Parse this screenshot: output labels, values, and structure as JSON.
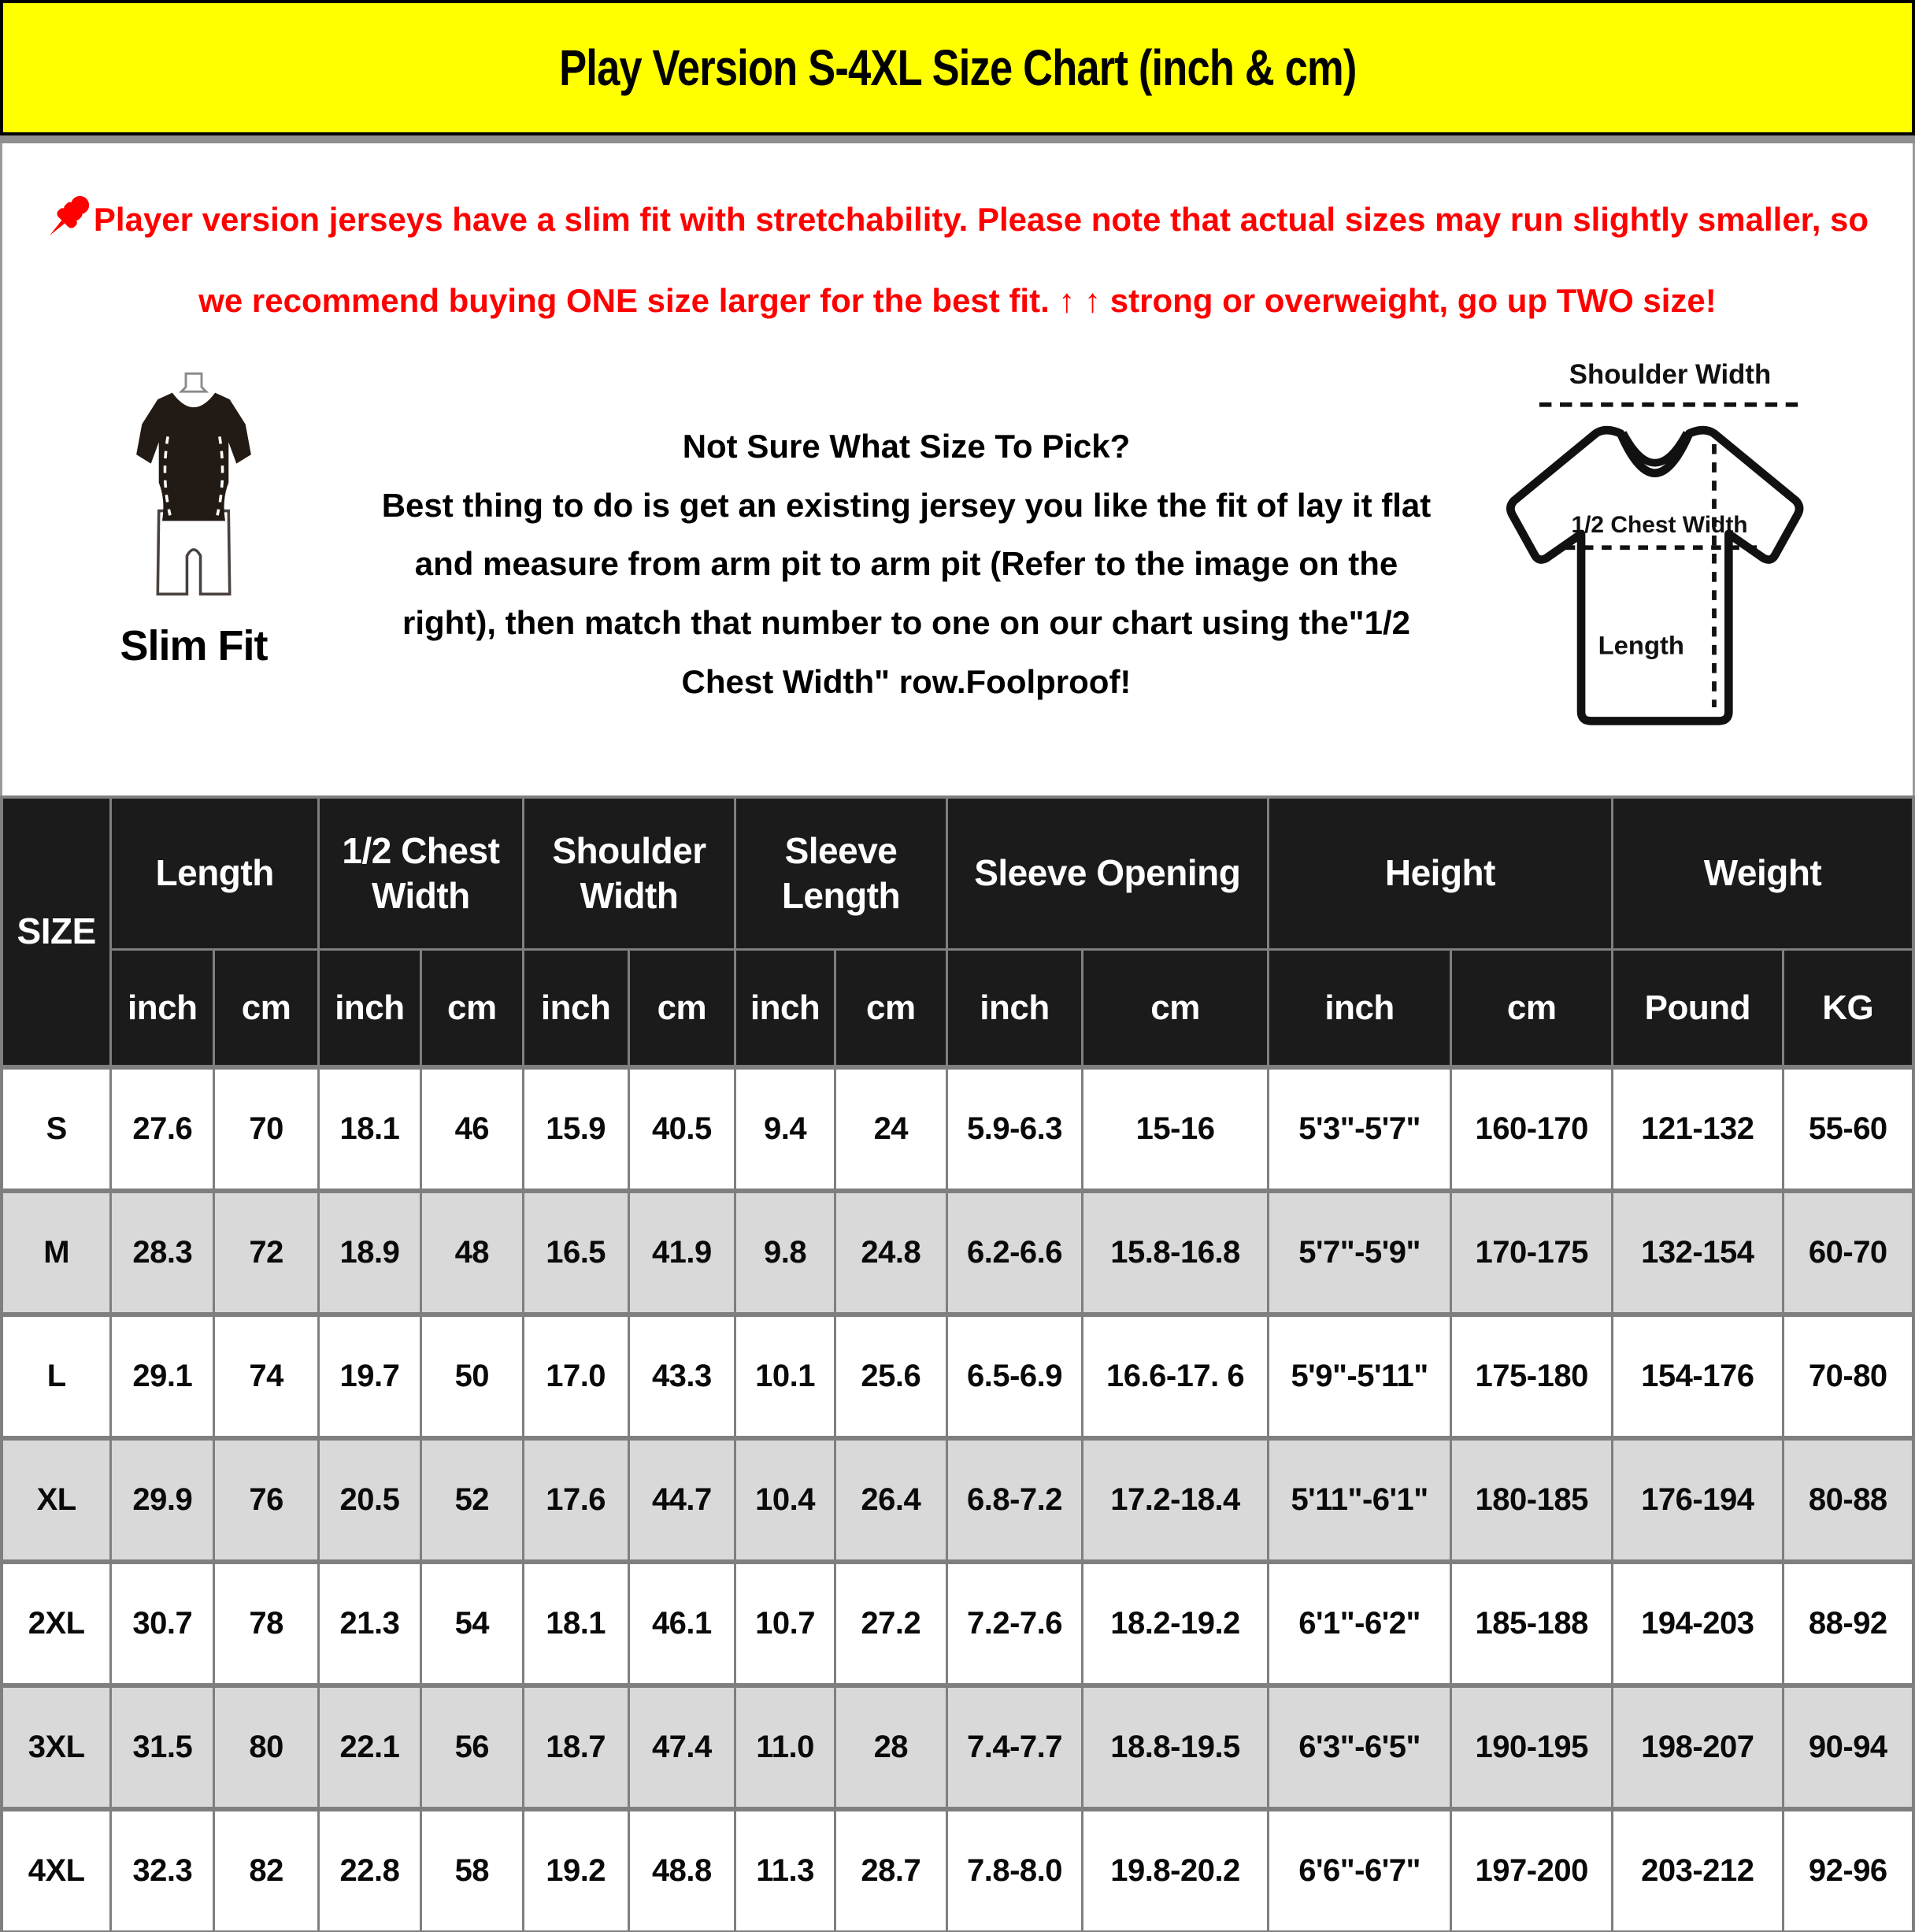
{
  "banner": {
    "title": "Play Version S-4XL Size Chart (inch & cm)"
  },
  "colors": {
    "banner_bg": "#FFFF00",
    "warning_red": "#FF0000",
    "table_header_bg": "#1B1B1B",
    "row_alt_gray": "#D9D9D9",
    "grid_gray": "#7F7F7F"
  },
  "warning": {
    "pin_icon": "pushpin-icon",
    "text": "Player version jerseys have a slim fit with stretchability. Please note that actual sizes may run slightly smaller, so we recommend buying ONE size larger for the best fit. ↑ ↑ strong or overweight, go up TWO size!"
  },
  "fit_figure": {
    "icon": "slim-fit-figure-icon",
    "label": "Slim Fit"
  },
  "size_help": {
    "heading": "Not Sure What Size To Pick?",
    "body": "Best thing to do is get an existing jersey you like the fit of lay it flat and measure from arm pit to arm pit (Refer to the image on the right), then match that number to one on our chart using the\"1/2 Chest Width\" row.Foolproof!"
  },
  "diagram": {
    "icon": "tshirt-diagram-icon",
    "shoulder_width_label": "Shoulder Width",
    "half_chest_label": "1/2 Chest Width",
    "length_label": "Length"
  },
  "table": {
    "corner_label": "SIZE",
    "groups": [
      {
        "label": "Length",
        "units": [
          "inch",
          "cm"
        ]
      },
      {
        "label": "1/2 Chest Width",
        "units": [
          "inch",
          "cm"
        ]
      },
      {
        "label": "Shoulder Width",
        "units": [
          "inch",
          "cm"
        ]
      },
      {
        "label": "Sleeve Length",
        "units": [
          "inch",
          "cm"
        ]
      },
      {
        "label": "Sleeve Opening",
        "units": [
          "inch",
          "cm"
        ]
      },
      {
        "label": "Height",
        "units": [
          "inch",
          "cm"
        ]
      },
      {
        "label": "Weight",
        "units": [
          "Pound",
          "KG"
        ]
      }
    ],
    "rows": [
      {
        "size": "S",
        "values": [
          "27.6",
          "70",
          "18.1",
          "46",
          "15.9",
          "40.5",
          "9.4",
          "24",
          "5.9-6.3",
          "15-16",
          "5'3\"-5'7\"",
          "160-170",
          "121-132",
          "55-60"
        ]
      },
      {
        "size": "M",
        "values": [
          "28.3",
          "72",
          "18.9",
          "48",
          "16.5",
          "41.9",
          "9.8",
          "24.8",
          "6.2-6.6",
          "15.8-16.8",
          "5'7\"-5'9\"",
          "170-175",
          "132-154",
          "60-70"
        ]
      },
      {
        "size": "L",
        "values": [
          "29.1",
          "74",
          "19.7",
          "50",
          "17.0",
          "43.3",
          "10.1",
          "25.6",
          "6.5-6.9",
          "16.6-17. 6",
          "5'9\"-5'11\"",
          "175-180",
          "154-176",
          "70-80"
        ]
      },
      {
        "size": "XL",
        "values": [
          "29.9",
          "76",
          "20.5",
          "52",
          "17.6",
          "44.7",
          "10.4",
          "26.4",
          "6.8-7.2",
          "17.2-18.4",
          "5'11\"-6'1\"",
          "180-185",
          "176-194",
          "80-88"
        ]
      },
      {
        "size": "2XL",
        "values": [
          "30.7",
          "78",
          "21.3",
          "54",
          "18.1",
          "46.1",
          "10.7",
          "27.2",
          "7.2-7.6",
          "18.2-19.2",
          "6'1\"-6'2\"",
          "185-188",
          "194-203",
          "88-92"
        ]
      },
      {
        "size": "3XL",
        "values": [
          "31.5",
          "80",
          "22.1",
          "56",
          "18.7",
          "47.4",
          "11.0",
          "28",
          "7.4-7.7",
          "18.8-19.5",
          "6'3\"-6'5\"",
          "190-195",
          "198-207",
          "90-94"
        ]
      },
      {
        "size": "4XL",
        "values": [
          "32.3",
          "82",
          "22.8",
          "58",
          "19.2",
          "48.8",
          "11.3",
          "28.7",
          "7.8-8.0",
          "19.8-20.2",
          "6'6\"-6'7\"",
          "197-200",
          "203-212",
          "92-96"
        ]
      }
    ]
  }
}
